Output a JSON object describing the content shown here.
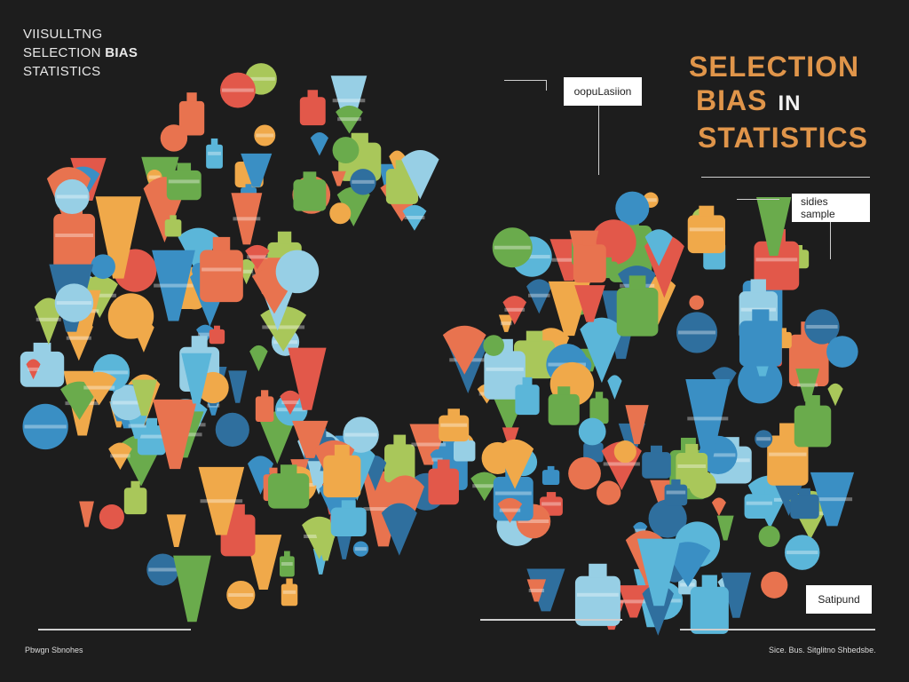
{
  "subtitle": {
    "line1": "VIISULLTNG",
    "line2_a": "SELECTION",
    "line2_b": "BIAS",
    "line3": "STATISTICS"
  },
  "title": {
    "line1": "SELECTION",
    "line2": "BIAS",
    "line2_in": "IN",
    "line3": "STATISTICS"
  },
  "labels": {
    "population": "oopuLasiion",
    "sample": "sidies sample",
    "bottom_right": "Satipund"
  },
  "footer": {
    "left": "Pbwgn Sbnohes",
    "right": "Sice. Bus. Sitglitno Shbedsbe."
  },
  "colors": {
    "background": "#1d1d1d",
    "title": "#e0954a",
    "palette": [
      "#3a8fc4",
      "#5bb6d9",
      "#6aab4c",
      "#a9c75a",
      "#e2584a",
      "#f0a94a",
      "#e8734f",
      "#2f6f9e",
      "#97cfe5"
    ]
  }
}
